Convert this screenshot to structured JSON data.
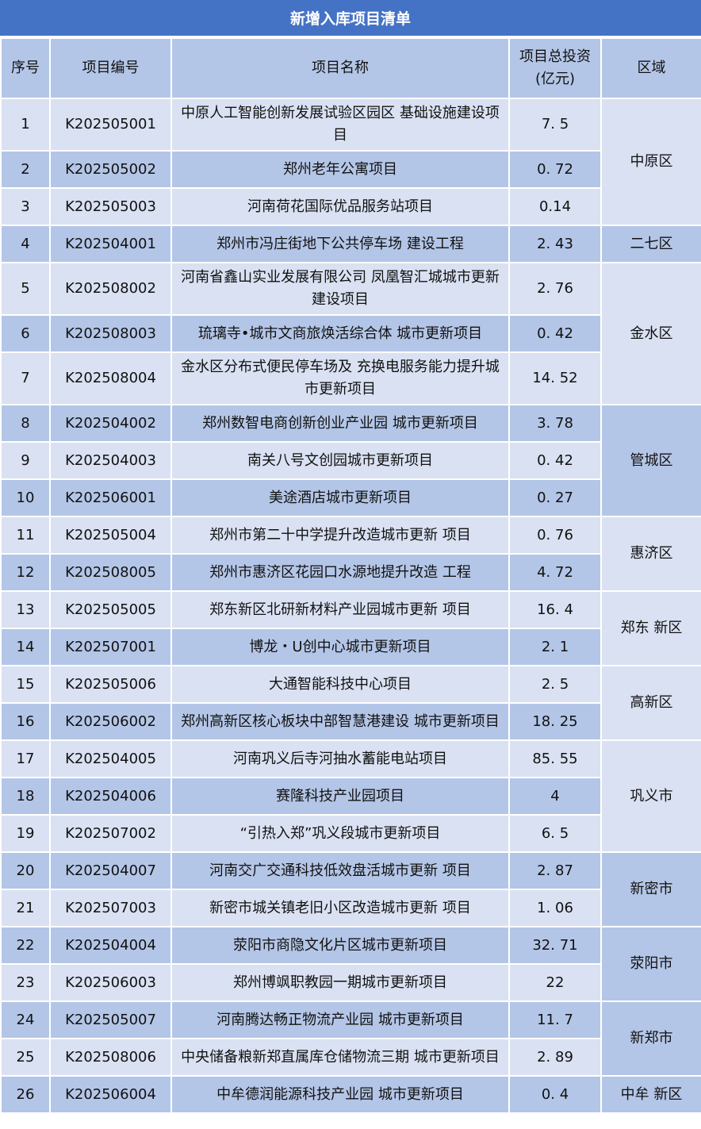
{
  "title": "新增入库项目清单",
  "colors": {
    "title_bg": "#4472C4",
    "dark_row": "#B4C6E7",
    "light_row": "#D9E1F2"
  },
  "headers": [
    "序号",
    "项目编号",
    "项目名称",
    "项目总投资(亿元)",
    "区域"
  ],
  "groups": [
    {
      "region": "中原区",
      "shade": "light",
      "rows": [
        [
          "1",
          "K202505001",
          "中原人工智能创新发展试验区园区 基础设施建设项目",
          "7. 5"
        ],
        [
          "2",
          "K202505002",
          "郑州老年公寓项目",
          "0. 72"
        ],
        [
          "3",
          "K202505003",
          "河南荷花国际优品服务站项目",
          "0.14"
        ]
      ]
    },
    {
      "region": "二七区",
      "shade": "dark",
      "rows": [
        [
          "4",
          "K202504001",
          "郑州市冯庄街地下公共停车场 建设工程",
          "2. 43"
        ]
      ]
    },
    {
      "region": "金水区",
      "shade": "light",
      "rows": [
        [
          "5",
          "K202508002",
          "河南省鑫山实业发展有限公司 凤凰智汇城城市更新建设项目",
          "2. 76"
        ],
        [
          "6",
          "K202508003",
          "琉璃寺•城市文商旅焕活综合体 城市更新项目",
          "0. 42"
        ],
        [
          "7",
          "K202508004",
          "金水区分布式便民停车场及 充换电服务能力提升城市更新项目",
          "14. 52"
        ]
      ]
    },
    {
      "region": "管城区",
      "shade": "dark",
      "rows": [
        [
          "8",
          "K202504002",
          "郑州数智电商创新创业产业园 城市更新项目",
          "3. 78"
        ],
        [
          "9",
          "K202504003",
          "南关八号文创园城市更新项目",
          "0. 42"
        ],
        [
          "10",
          "K202506001",
          "美途酒店城市更新项目",
          "0. 27"
        ]
      ]
    },
    {
      "region": "惠济区",
      "shade": "light",
      "rows": [
        [
          "11",
          "K202505004",
          "郑州市第二十中学提升改造城市更新 项目",
          "0. 76"
        ],
        [
          "12",
          "K202508005",
          "郑州市惠济区花园口水源地提升改造 工程",
          "4. 72"
        ]
      ]
    },
    {
      "region": "郑东 新区",
      "shade": "light",
      "rows": [
        [
          "13",
          "K202505005",
          "郑东新区北研新材料产业园城市更新 项目",
          "16. 4"
        ],
        [
          "14",
          "K202507001",
          "博龙・U创中心城市更新项目",
          "2. 1"
        ]
      ]
    },
    {
      "region": "高新区",
      "shade": "light",
      "rows": [
        [
          "15",
          "K202505006",
          "大通智能科技中心项目",
          "2. 5"
        ],
        [
          "16",
          "K202506002",
          "郑州高新区核心板块中部智慧港建设 城市更新项目",
          "18. 25"
        ]
      ]
    },
    {
      "region": "巩义市",
      "shade": "light",
      "rows": [
        [
          "17",
          "K202504005",
          "河南巩义后寺河抽水蓄能电站项目",
          "85. 55"
        ],
        [
          "18",
          "K202504006",
          "赛隆科技产业园项目",
          "4"
        ],
        [
          "19",
          "K202507002",
          "“引热入郑”巩义段城市更新项目",
          "6. 5"
        ]
      ]
    },
    {
      "region": "新密市",
      "shade": "dark",
      "rows": [
        [
          "20",
          "K202504007",
          "河南交广交通科技低效盘活城市更新 项目",
          "2. 87"
        ],
        [
          "21",
          "K202507003",
          "新密市城关镇老旧小区改造城市更新 项目",
          "1. 06"
        ]
      ]
    },
    {
      "region": "荥阳市",
      "shade": "dark",
      "rows": [
        [
          "22",
          "K202504004",
          "荥阳市商隐文化片区城市更新项目",
          "32. 71"
        ],
        [
          "23",
          "K202506003",
          "郑州博飒职教园一期城市更新项目",
          "22"
        ]
      ]
    },
    {
      "region": "新郑市",
      "shade": "dark",
      "rows": [
        [
          "24",
          "K202505007",
          "河南腾达畅正物流产业园 城市更新项目",
          "11. 7"
        ],
        [
          "25",
          "K202508006",
          "中央储备粮新郑直属库仓储物流三期 城市更新项目",
          "2. 89"
        ]
      ]
    },
    {
      "region": "中牟 新区",
      "shade": "dark",
      "rows": [
        [
          "26",
          "K202506004",
          "中牟德润能源科技产业园 城市更新项目",
          "0. 4"
        ]
      ]
    }
  ]
}
